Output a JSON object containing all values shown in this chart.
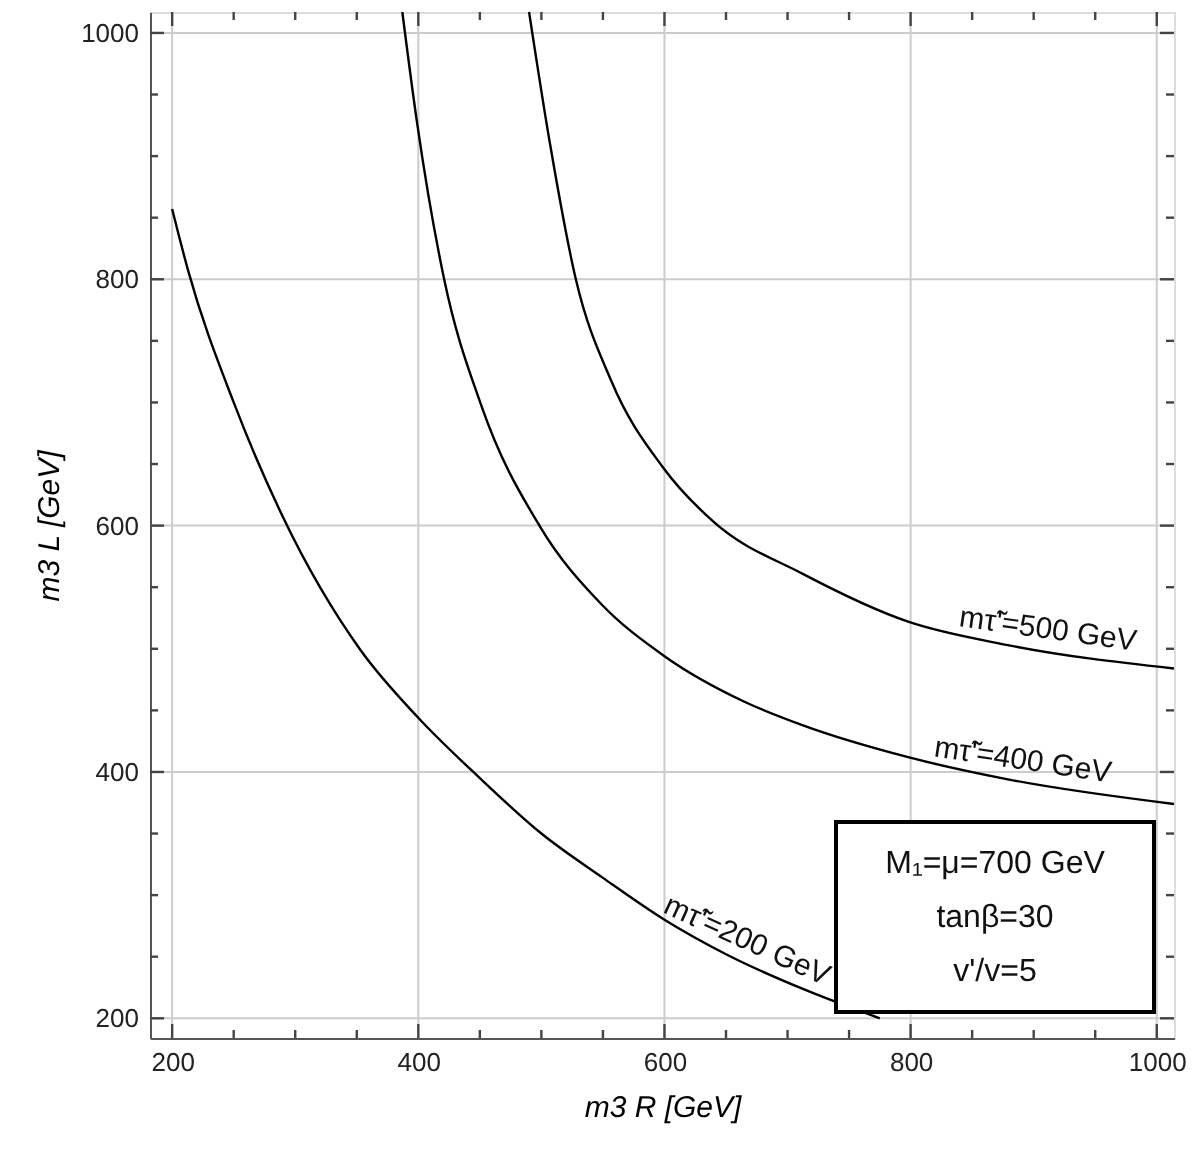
{
  "chart_data": {
    "type": "line",
    "xlabel": "m3 R [GeV]",
    "ylabel": "m3 L [GeV]",
    "xlim": [
      182,
      1014
    ],
    "ylim": [
      184,
      1017
    ],
    "xticks": [
      200,
      {
        "value": 250,
        "label": null
      },
      {
        "value": 300,
        "label": null
      },
      {
        "value": 350,
        "label": null
      },
      400,
      {
        "value": 450,
        "label": null
      },
      {
        "value": 500,
        "label": null
      },
      {
        "value": 550,
        "label": null
      },
      600,
      {
        "value": 650,
        "label": null
      },
      {
        "value": 700,
        "label": null
      },
      {
        "value": 750,
        "label": null
      },
      800,
      {
        "value": 850,
        "label": null
      },
      {
        "value": 900,
        "label": null
      },
      {
        "value": 950,
        "label": null
      },
      1000
    ],
    "yticks": [
      200,
      {
        "value": 250,
        "label": null
      },
      {
        "value": 300,
        "label": null
      },
      {
        "value": 350,
        "label": null
      },
      400,
      {
        "value": 450,
        "label": null
      },
      {
        "value": 500,
        "label": null
      },
      {
        "value": 550,
        "label": null
      },
      600,
      {
        "value": 650,
        "label": null
      },
      {
        "value": 700,
        "label": null
      },
      {
        "value": 750,
        "label": null
      },
      800,
      {
        "value": 850,
        "label": null
      },
      {
        "value": 900,
        "label": null
      },
      {
        "value": 950,
        "label": null
      },
      1000
    ],
    "grid": true,
    "marker": "none",
    "line_style": "solid",
    "series": [
      {
        "name": "mτ̃'=200 GeV",
        "color": "#000000",
        "x": [
          200,
          213,
          250,
          290,
          353,
          399,
          450,
          500,
          550,
          600,
          650,
          712,
          775
        ],
        "values": [
          857,
          807,
          700,
          607,
          499,
          445,
          395,
          350,
          314,
          280,
          252,
          224,
          200
        ]
      },
      {
        "name": "mτ̃'=400 GeV",
        "color": "#000000",
        "x": [
          387,
          399,
          421,
          451,
          499,
          548,
          600,
          665,
          712,
          798,
          879,
          1014
        ],
        "values": [
          1017,
          927,
          800,
          698,
          599,
          537,
          494,
          457,
          438,
          412,
          394,
          374
        ]
      },
      {
        "name": "mτ̃'=500 GeV",
        "color": "#000000",
        "x": [
          490,
          507,
          528,
          557,
          599,
          640,
          712,
          798,
          879,
          1014
        ],
        "values": [
          1017,
          910,
          800,
          717,
          647,
          603,
          561,
          522,
          503,
          484
        ]
      }
    ],
    "annotations": [
      "M₁=μ=700 GeV",
      "tanβ=30",
      "v'/v=5"
    ]
  }
}
